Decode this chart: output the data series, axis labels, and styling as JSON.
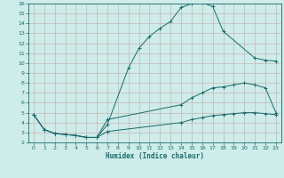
{
  "xlabel": "Humidex (Indice chaleur)",
  "ylabel": "",
  "xlim": [
    -0.5,
    23.5
  ],
  "ylim": [
    2,
    16
  ],
  "xticks": [
    0,
    1,
    2,
    3,
    4,
    5,
    6,
    7,
    8,
    9,
    10,
    11,
    12,
    13,
    14,
    15,
    16,
    17,
    18,
    19,
    20,
    21,
    22,
    23
  ],
  "yticks": [
    2,
    3,
    4,
    5,
    6,
    7,
    8,
    9,
    10,
    11,
    12,
    13,
    14,
    15,
    16
  ],
  "bg_color": "#cdecea",
  "grid_color": "#c8a8a8",
  "line_color": "#1a6b6a",
  "curve1_x": [
    0,
    1,
    2,
    3,
    4,
    5,
    6,
    7,
    9,
    10,
    11,
    12,
    13,
    14,
    15,
    16,
    17,
    18,
    21,
    22,
    23
  ],
  "curve1_y": [
    4.8,
    3.3,
    2.9,
    2.8,
    2.7,
    2.5,
    2.5,
    3.8,
    9.5,
    11.5,
    12.7,
    13.5,
    14.2,
    15.6,
    16.0,
    16.1,
    15.7,
    13.2,
    10.5,
    10.3,
    10.2
  ],
  "curve2_x": [
    0,
    1,
    2,
    3,
    4,
    5,
    6,
    7,
    14,
    15,
    16,
    17,
    18,
    19,
    20,
    21,
    22,
    23
  ],
  "curve2_y": [
    4.8,
    3.3,
    2.9,
    2.8,
    2.7,
    2.5,
    2.5,
    4.3,
    5.8,
    6.5,
    7.0,
    7.5,
    7.6,
    7.8,
    8.0,
    7.8,
    7.5,
    5.0
  ],
  "curve3_x": [
    0,
    1,
    2,
    3,
    4,
    5,
    6,
    7,
    14,
    15,
    16,
    17,
    18,
    19,
    20,
    21,
    22,
    23
  ],
  "curve3_y": [
    4.8,
    3.3,
    2.9,
    2.8,
    2.7,
    2.5,
    2.5,
    3.1,
    4.0,
    4.3,
    4.5,
    4.7,
    4.8,
    4.9,
    5.0,
    5.0,
    4.9,
    4.8
  ]
}
